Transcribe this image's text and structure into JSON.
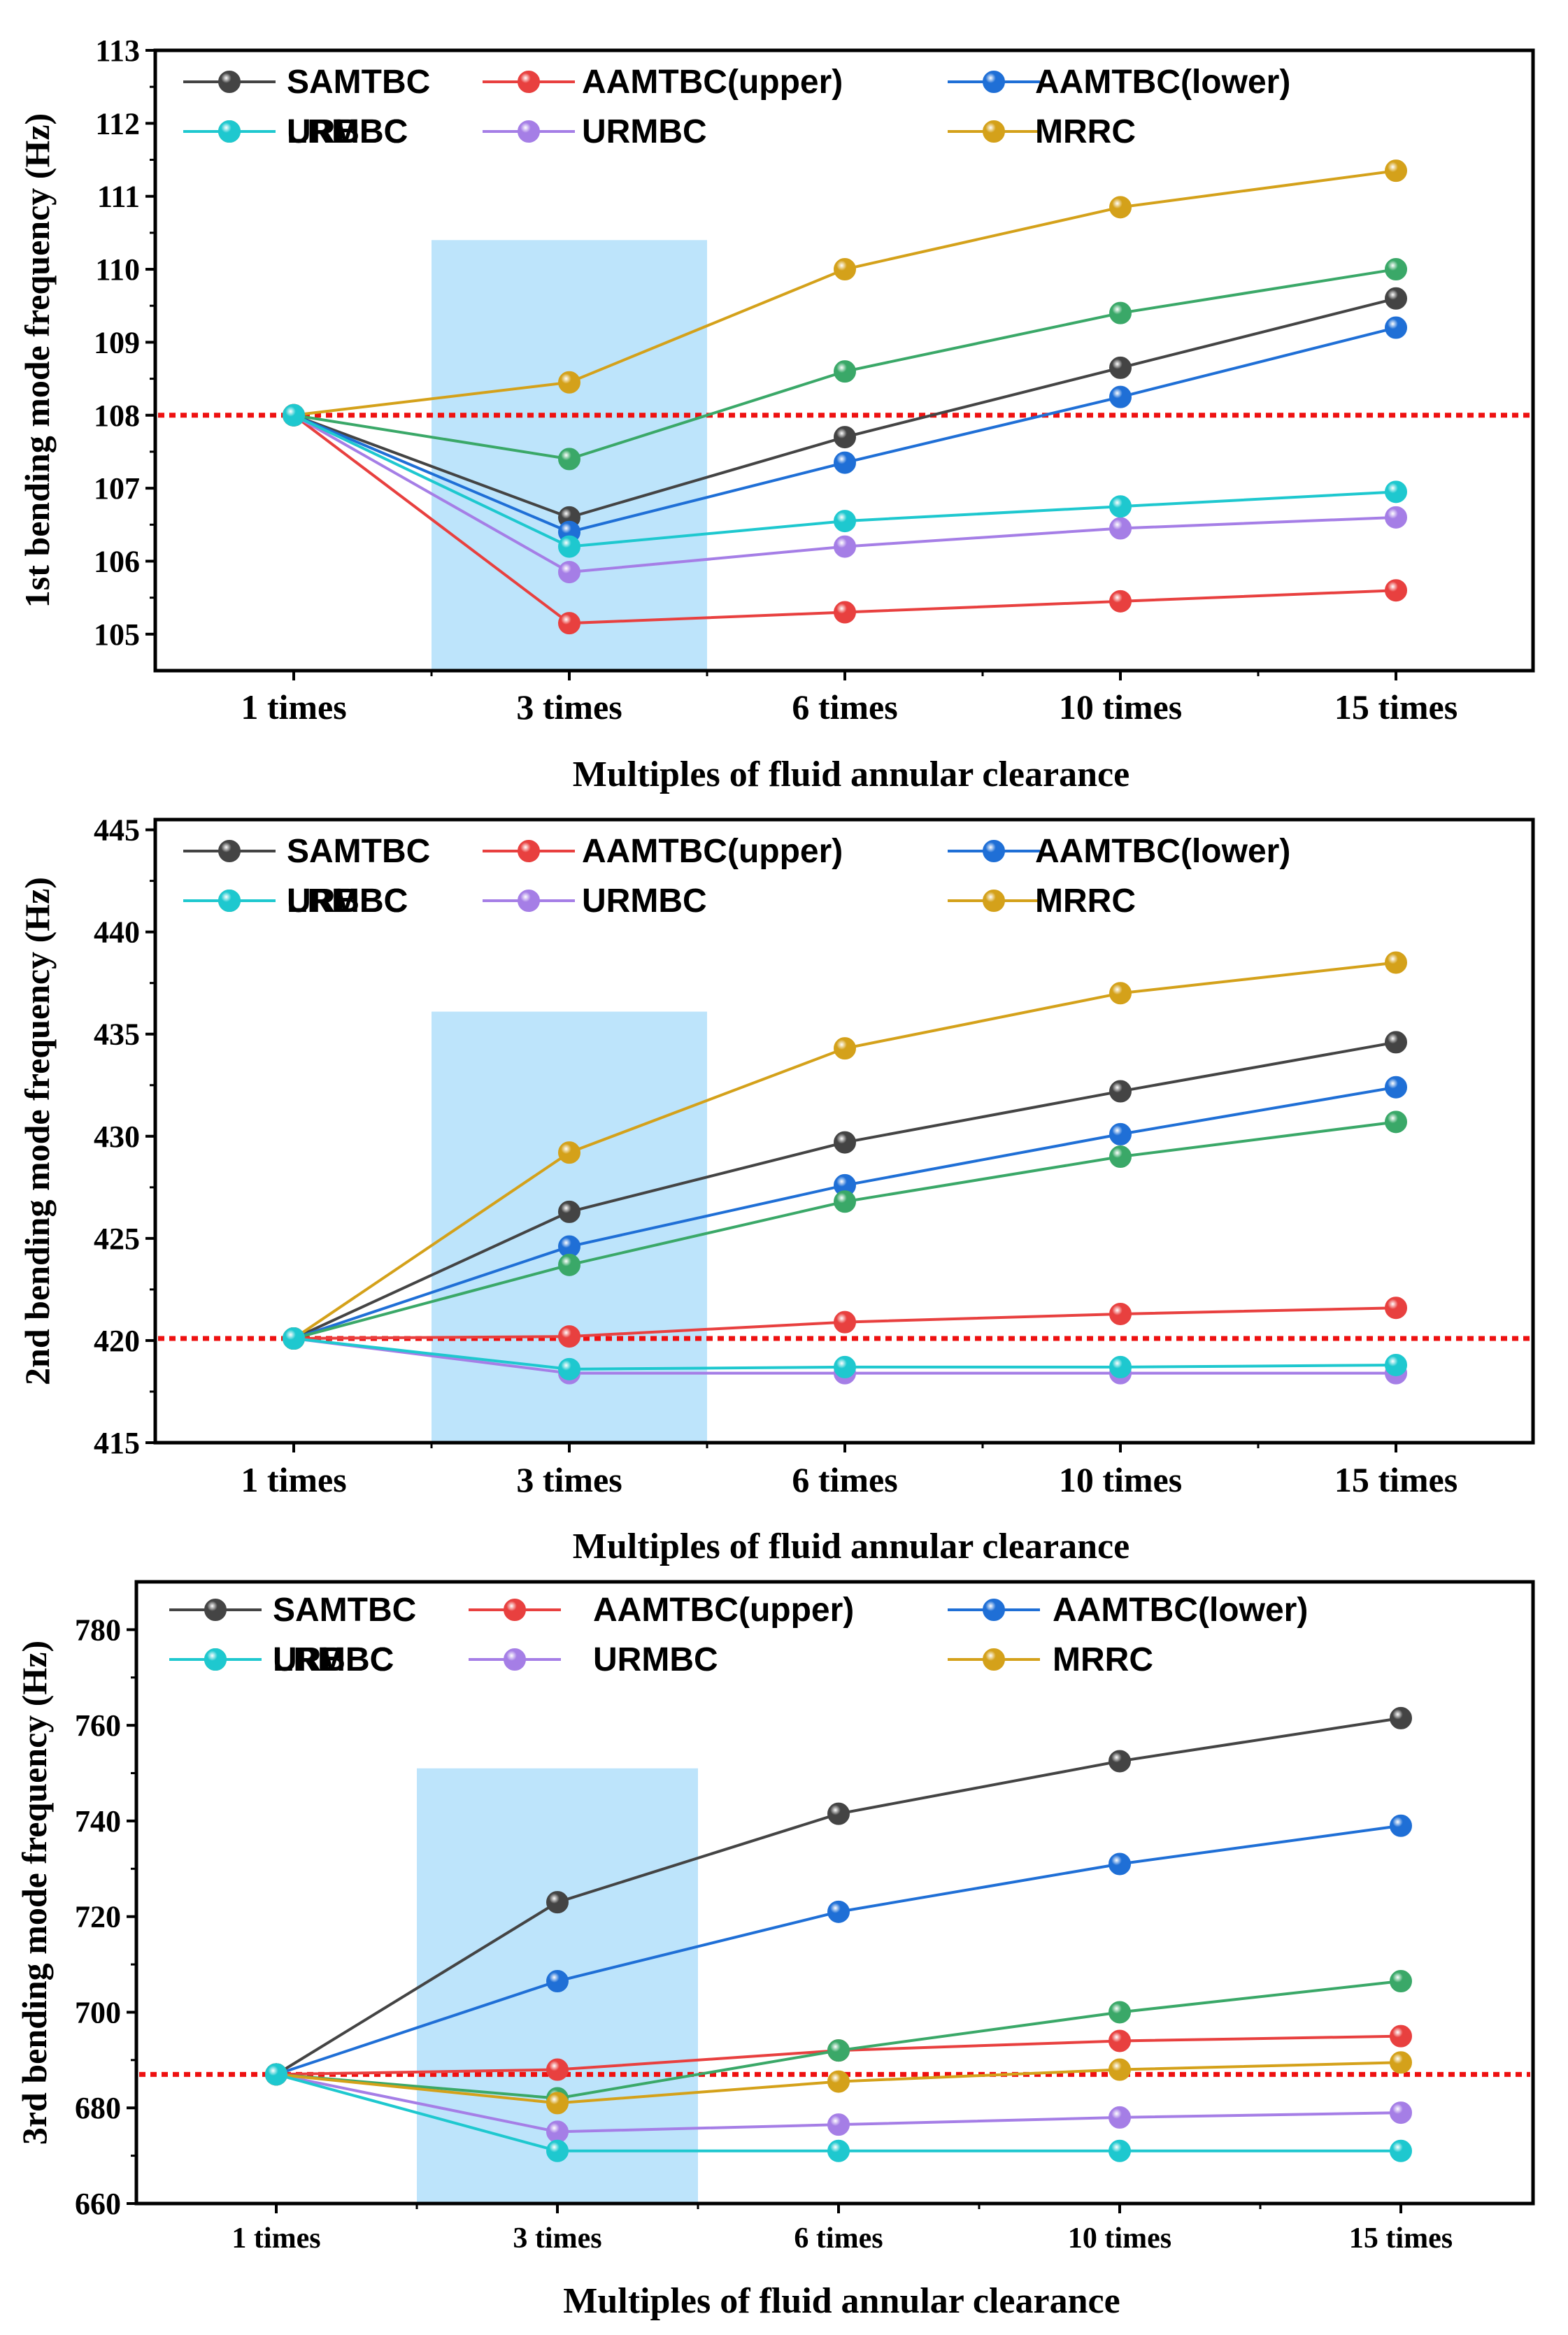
{
  "chart_data": [
    {
      "type": "line",
      "title": "",
      "xlabel": "Multiples of fluid annular clearance",
      "ylabel": "1st bending mode frequency (Hz)",
      "categories": [
        "1 times",
        "3 times",
        "6 times",
        "10 times",
        "15 times"
      ],
      "ylim": [
        104.5,
        113
      ],
      "yticks": [
        105,
        106,
        107,
        108,
        109,
        110,
        111,
        112,
        113
      ],
      "reference_line": {
        "value": 108,
        "color": "#ee1111",
        "style": "dotted"
      },
      "highlight_band": {
        "x_from": 0.5,
        "x_to": 1.5,
        "y_top": 110.4,
        "color": "#bde4fb"
      },
      "legend_position": "top",
      "series": [
        {
          "name": "SAMTBC",
          "color": "#444444",
          "values": [
            108,
            106.6,
            107.7,
            108.65,
            109.6
          ]
        },
        {
          "name": "AAMTBC(upper)",
          "color": "#e8403f",
          "values": [
            108,
            105.15,
            105.3,
            105.45,
            105.6
          ]
        },
        {
          "name": "AAMTBC(lower)",
          "color": "#1f6fd6",
          "values": [
            108,
            106.4,
            107.35,
            108.25,
            109.2
          ]
        },
        {
          "name": "URBBC",
          "color": "#3aa868",
          "values": [
            108,
            107.4,
            108.6,
            109.4,
            110
          ]
        },
        {
          "name": "URMBC",
          "color": "#a57ee6",
          "values": [
            108,
            105.85,
            106.2,
            106.45,
            106.6
          ]
        },
        {
          "name": "MRRC",
          "color": "#d4a11a",
          "values": [
            108,
            108.45,
            110,
            110.85,
            111.35
          ]
        },
        {
          "name": "LRMBC",
          "color": "#1ec8cf",
          "values": [
            108,
            106.2,
            106.55,
            106.75,
            106.95
          ]
        }
      ]
    },
    {
      "type": "line",
      "title": "",
      "xlabel": "Multiples of fluid annular clearance",
      "ylabel": "2nd bending mode frequency (Hz)",
      "categories": [
        "1 times",
        "3 times",
        "6 times",
        "10 times",
        "15 times"
      ],
      "ylim": [
        415,
        445.5
      ],
      "yticks": [
        415,
        420,
        425,
        430,
        435,
        440,
        445
      ],
      "reference_line": {
        "value": 420.1,
        "color": "#ee1111",
        "style": "dotted"
      },
      "highlight_band": {
        "x_from": 0.5,
        "x_to": 1.5,
        "y_top": 436.1,
        "color": "#bde4fb"
      },
      "legend_position": "top",
      "series": [
        {
          "name": "SAMTBC",
          "color": "#444444",
          "values": [
            420.1,
            426.3,
            429.7,
            432.2,
            434.6
          ]
        },
        {
          "name": "AAMTBC(upper)",
          "color": "#e8403f",
          "values": [
            420.1,
            420.2,
            420.9,
            421.3,
            421.6
          ]
        },
        {
          "name": "AAMTBC(lower)",
          "color": "#1f6fd6",
          "values": [
            420.1,
            424.6,
            427.6,
            430.1,
            432.4
          ]
        },
        {
          "name": "URBBC",
          "color": "#3aa868",
          "values": [
            420.1,
            423.7,
            426.8,
            429,
            430.7
          ]
        },
        {
          "name": "URMBC",
          "color": "#a57ee6",
          "values": [
            420.1,
            418.4,
            418.4,
            418.4,
            418.4
          ]
        },
        {
          "name": "MRRC",
          "color": "#d4a11a",
          "values": [
            420.1,
            429.2,
            434.3,
            437,
            438.5
          ]
        },
        {
          "name": "LRMBC",
          "color": "#1ec8cf",
          "values": [
            420.1,
            418.6,
            418.7,
            418.7,
            418.8
          ]
        }
      ]
    },
    {
      "type": "line",
      "title": "",
      "xlabel": "Multiples of fluid annular clearance",
      "ylabel": "3rd bending mode frequency (Hz)",
      "categories": [
        "1 times",
        "3 times",
        "6 times",
        "10 times",
        "15 times"
      ],
      "ylim": [
        660,
        790
      ],
      "yticks": [
        660,
        680,
        700,
        720,
        740,
        760,
        780
      ],
      "reference_line": {
        "value": 687,
        "color": "#ee1111",
        "style": "dotted"
      },
      "highlight_band": {
        "x_from": 0.5,
        "x_to": 1.5,
        "y_top": 751,
        "color": "#bde4fb"
      },
      "legend_position": "top",
      "series": [
        {
          "name": "SAMTBC",
          "color": "#444444",
          "values": [
            687,
            723,
            741.5,
            752.5,
            761.5
          ]
        },
        {
          "name": "AAMTBC(upper)",
          "color": "#e8403f",
          "values": [
            687,
            688,
            692,
            694,
            695
          ]
        },
        {
          "name": "AAMTBC(lower)",
          "color": "#1f6fd6",
          "values": [
            687,
            706.5,
            721,
            731,
            739
          ]
        },
        {
          "name": "URBBC",
          "color": "#3aa868",
          "values": [
            687,
            682,
            692,
            700,
            706.5
          ]
        },
        {
          "name": "URMBC",
          "color": "#a57ee6",
          "values": [
            687,
            675,
            676.5,
            678,
            679
          ]
        },
        {
          "name": "MRRC",
          "color": "#d4a11a",
          "values": [
            687,
            681,
            685.5,
            688,
            689.5
          ]
        },
        {
          "name": "LRMBC",
          "color": "#1ec8cf",
          "values": [
            687,
            671,
            671,
            671,
            671
          ]
        }
      ]
    }
  ]
}
